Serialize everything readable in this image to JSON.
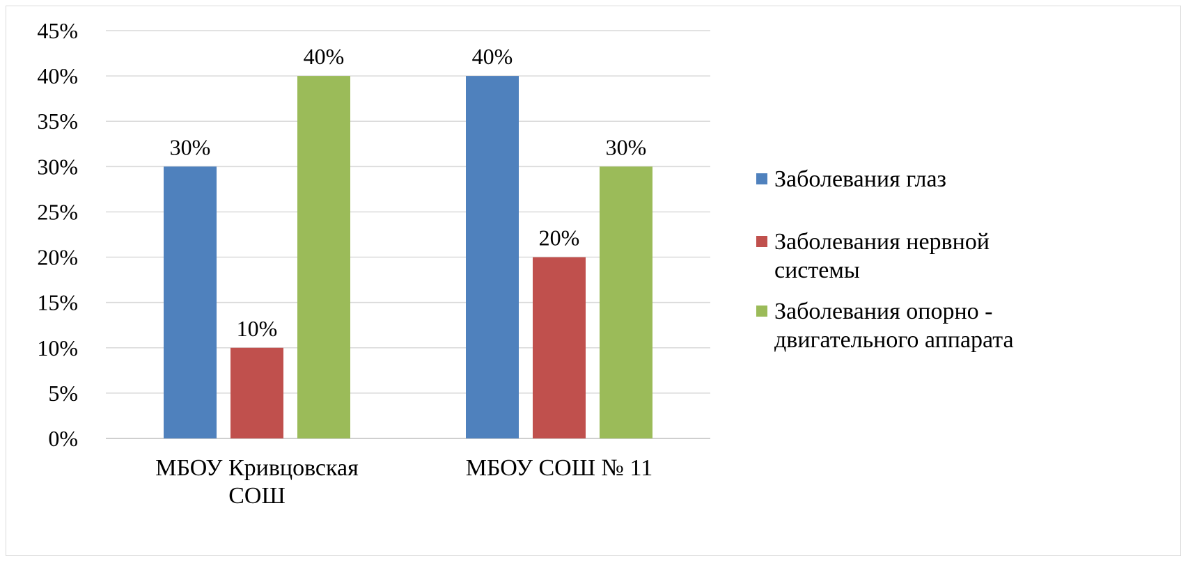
{
  "chart_data": {
    "type": "bar",
    "title": "",
    "xlabel": "",
    "ylabel": "",
    "ylim": [
      0,
      45
    ],
    "y_step": 5,
    "y_tick_suffix": "%",
    "grid": true,
    "legend_position": "right",
    "categories": [
      [
        "МБОУ Кривцовская",
        "СОШ"
      ],
      [
        "МБОУ СОШ № 11"
      ]
    ],
    "series": [
      {
        "name": [
          "Заболевания глаз"
        ],
        "color": "#4f81bd",
        "values": [
          30,
          40
        ],
        "labels": [
          "30%",
          "40%"
        ]
      },
      {
        "name": [
          "Заболевания нервной",
          "системы"
        ],
        "color": "#c0504d",
        "values": [
          10,
          20
        ],
        "labels": [
          "10%",
          "20%"
        ]
      },
      {
        "name": [
          "Заболевания опорно -",
          "двигательного аппарата"
        ],
        "color": "#9bbb59",
        "values": [
          40,
          30
        ],
        "labels": [
          "40%",
          "30%"
        ]
      }
    ]
  }
}
